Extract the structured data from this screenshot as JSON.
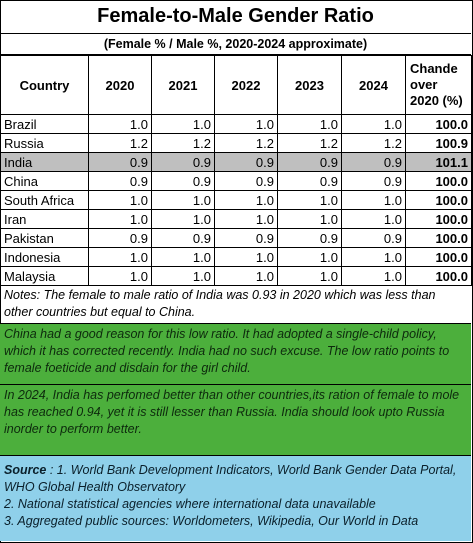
{
  "title": "Female-to-Male Gender Ratio",
  "subtitle": "(Female % / Male %, 2020-2024 approximate)",
  "table": {
    "headers": [
      "Country",
      "2020",
      "2021",
      "2022",
      "2023",
      "2024",
      "Chande over 2020 (%)"
    ],
    "rows": [
      {
        "country": "Brazil",
        "values": [
          "1.0",
          "1.0",
          "1.0",
          "1.0",
          "1.0"
        ],
        "change": "100.0",
        "highlight": false
      },
      {
        "country": "Russia",
        "values": [
          "1.2",
          "1.2",
          "1.2",
          "1.2",
          "1.2"
        ],
        "change": "100.9",
        "highlight": false
      },
      {
        "country": "India",
        "values": [
          "0.9",
          "0.9",
          "0.9",
          "0.9",
          "0.9"
        ],
        "change": "101.1",
        "highlight": true
      },
      {
        "country": "China",
        "values": [
          "0.9",
          "0.9",
          "0.9",
          "0.9",
          "0.9"
        ],
        "change": "100.0",
        "highlight": false
      },
      {
        "country": "South Africa",
        "values": [
          "1.0",
          "1.0",
          "1.0",
          "1.0",
          "1.0"
        ],
        "change": "100.0",
        "highlight": false
      },
      {
        "country": "Iran",
        "values": [
          "1.0",
          "1.0",
          "1.0",
          "1.0",
          "1.0"
        ],
        "change": "100.0",
        "highlight": false
      },
      {
        "country": "Pakistan",
        "values": [
          "0.9",
          "0.9",
          "0.9",
          "0.9",
          "0.9"
        ],
        "change": "100.0",
        "highlight": false
      },
      {
        "country": "Indonesia",
        "values": [
          "1.0",
          "1.0",
          "1.0",
          "1.0",
          "1.0"
        ],
        "change": "100.0",
        "highlight": false
      },
      {
        "country": "Malaysia",
        "values": [
          "1.0",
          "1.0",
          "1.0",
          "1.0",
          "1.0"
        ],
        "change": "100.0",
        "highlight": false
      }
    ]
  },
  "notes": "Notes: The female to male ratio of India was 0.93 in 2020 which was less than other countries but equal to China.",
  "comment1": "China had a good reason for this low ratio.  It had adopted a single-child policy, which it has corrected recently.  India had no such excuse. The low ratio points to female foeticide and disdain for the girl child.",
  "comment2": "In 2024, India has perfomed better than other countries,its ration of female to mole has reached 0.94, yet it is still lesser than Russia. India should look upto Russia inorder to perform better.",
  "source": {
    "label": "Source",
    "line1": " : 1. World Bank Development Indicators, World Bank Gender Data Portal, WHO Global Health Observatory",
    "line2": "2. National statistical agencies where international data unavailable",
    "line3": "3. Aggregated public sources: Worldometers, Wikipedia, Our World in Data"
  },
  "colors": {
    "highlight_row": "#bfbfbf",
    "comment_bg": "#4caf3c",
    "source_bg": "#8fd0ea"
  }
}
